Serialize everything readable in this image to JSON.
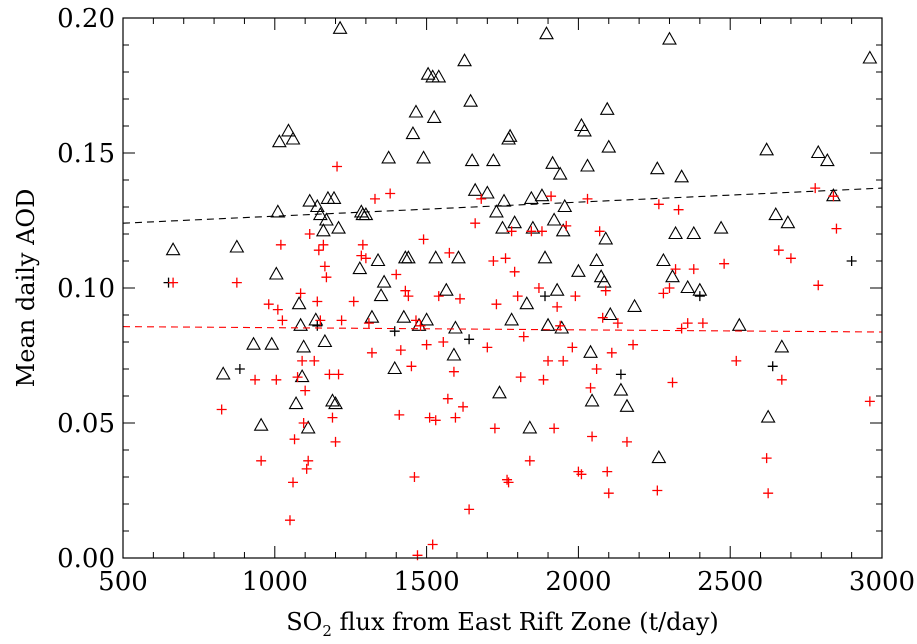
{
  "chart_data": {
    "type": "scatter",
    "xlabel_pre": "SO",
    "xlabel_sub": "2",
    "xlabel_post": " flux from East Rift Zone (t/day)",
    "ylabel": "Mean daily AOD",
    "xlim": [
      500,
      3000
    ],
    "ylim": [
      0.0,
      0.2
    ],
    "x_ticks": [
      "500",
      "1000",
      "1500",
      "2000",
      "2500",
      "3000"
    ],
    "y_ticks": [
      "0.00",
      "0.05",
      "0.10",
      "0.15",
      "0.20"
    ],
    "grid": false,
    "colors": {
      "triangles": "#000000",
      "black_plus": "#000000",
      "red_plus": "#ff0000",
      "black_trend": "#000000",
      "red_trend": "#ff0000"
    },
    "series": [
      {
        "marker": "triangle",
        "color": "#000000",
        "points": [
          [
            665,
            0.114
          ],
          [
            830,
            0.068
          ],
          [
            875,
            0.115
          ],
          [
            930,
            0.079
          ],
          [
            955,
            0.049
          ],
          [
            990,
            0.079
          ],
          [
            1005,
            0.105
          ],
          [
            1010,
            0.128
          ],
          [
            1015,
            0.154
          ],
          [
            1045,
            0.158
          ],
          [
            1060,
            0.155
          ],
          [
            1070,
            0.057
          ],
          [
            1080,
            0.094
          ],
          [
            1085,
            0.086
          ],
          [
            1090,
            0.067
          ],
          [
            1095,
            0.078
          ],
          [
            1110,
            0.048
          ],
          [
            1115,
            0.132
          ],
          [
            1135,
            0.088
          ],
          [
            1140,
            0.13
          ],
          [
            1150,
            0.127
          ],
          [
            1160,
            0.121
          ],
          [
            1165,
            0.08
          ],
          [
            1170,
            0.125
          ],
          [
            1175,
            0.133
          ],
          [
            1190,
            0.058
          ],
          [
            1195,
            0.133
          ],
          [
            1200,
            0.057
          ],
          [
            1210,
            0.122
          ],
          [
            1215,
            0.196
          ],
          [
            1280,
            0.107
          ],
          [
            1285,
            0.128
          ],
          [
            1290,
            0.127
          ],
          [
            1300,
            0.127
          ],
          [
            1320,
            0.089
          ],
          [
            1340,
            0.11
          ],
          [
            1350,
            0.097
          ],
          [
            1360,
            0.102
          ],
          [
            1375,
            0.148
          ],
          [
            1395,
            0.07
          ],
          [
            1425,
            0.089
          ],
          [
            1430,
            0.111
          ],
          [
            1440,
            0.111
          ],
          [
            1455,
            0.157
          ],
          [
            1465,
            0.165
          ],
          [
            1475,
            0.086
          ],
          [
            1490,
            0.148
          ],
          [
            1500,
            0.088
          ],
          [
            1505,
            0.179
          ],
          [
            1520,
            0.178
          ],
          [
            1525,
            0.163
          ],
          [
            1530,
            0.111
          ],
          [
            1540,
            0.178
          ],
          [
            1565,
            0.099
          ],
          [
            1590,
            0.075
          ],
          [
            1595,
            0.085
          ],
          [
            1605,
            0.111
          ],
          [
            1625,
            0.184
          ],
          [
            1645,
            0.169
          ],
          [
            1650,
            0.147
          ],
          [
            1660,
            0.136
          ],
          [
            1700,
            0.135
          ],
          [
            1720,
            0.147
          ],
          [
            1730,
            0.128
          ],
          [
            1740,
            0.061
          ],
          [
            1750,
            0.122
          ],
          [
            1755,
            0.132
          ],
          [
            1770,
            0.155
          ],
          [
            1775,
            0.156
          ],
          [
            1780,
            0.088
          ],
          [
            1790,
            0.124
          ],
          [
            1830,
            0.094
          ],
          [
            1840,
            0.048
          ],
          [
            1845,
            0.133
          ],
          [
            1850,
            0.122
          ],
          [
            1880,
            0.134
          ],
          [
            1890,
            0.111
          ],
          [
            1895,
            0.194
          ],
          [
            1900,
            0.086
          ],
          [
            1915,
            0.146
          ],
          [
            1920,
            0.125
          ],
          [
            1930,
            0.099
          ],
          [
            1940,
            0.142
          ],
          [
            1945,
            0.085
          ],
          [
            1950,
            0.121
          ],
          [
            1955,
            0.13
          ],
          [
            2000,
            0.106
          ],
          [
            2010,
            0.16
          ],
          [
            2020,
            0.158
          ],
          [
            2030,
            0.145
          ],
          [
            2040,
            0.076
          ],
          [
            2045,
            0.058
          ],
          [
            2060,
            0.11
          ],
          [
            2075,
            0.104
          ],
          [
            2085,
            0.102
          ],
          [
            2090,
            0.118
          ],
          [
            2095,
            0.166
          ],
          [
            2100,
            0.152
          ],
          [
            2105,
            0.09
          ],
          [
            2140,
            0.062
          ],
          [
            2160,
            0.056
          ],
          [
            2185,
            0.093
          ],
          [
            2260,
            0.144
          ],
          [
            2265,
            0.037
          ],
          [
            2280,
            0.11
          ],
          [
            2300,
            0.192
          ],
          [
            2310,
            0.104
          ],
          [
            2320,
            0.12
          ],
          [
            2340,
            0.141
          ],
          [
            2360,
            0.1
          ],
          [
            2380,
            0.12
          ],
          [
            2400,
            0.099
          ],
          [
            2470,
            0.122
          ],
          [
            2530,
            0.086
          ],
          [
            2620,
            0.151
          ],
          [
            2625,
            0.052
          ],
          [
            2650,
            0.127
          ],
          [
            2670,
            0.078
          ],
          [
            2690,
            0.124
          ],
          [
            2790,
            0.15
          ],
          [
            2820,
            0.147
          ],
          [
            2840,
            0.134
          ],
          [
            2960,
            0.185
          ]
        ]
      },
      {
        "marker": "plus",
        "color": "#000000",
        "points": [
          [
            650,
            0.102
          ],
          [
            885,
            0.07
          ],
          [
            1140,
            0.086
          ],
          [
            1395,
            0.084
          ],
          [
            1640,
            0.081
          ],
          [
            1890,
            0.097
          ],
          [
            2140,
            0.068
          ],
          [
            2400,
            0.097
          ],
          [
            2640,
            0.071
          ],
          [
            2900,
            0.11
          ]
        ]
      },
      {
        "marker": "plus",
        "color": "#ff0000",
        "points": [
          [
            665,
            0.102
          ],
          [
            825,
            0.055
          ],
          [
            875,
            0.102
          ],
          [
            935,
            0.066
          ],
          [
            955,
            0.036
          ],
          [
            980,
            0.094
          ],
          [
            1005,
            0.066
          ],
          [
            1010,
            0.092
          ],
          [
            1020,
            0.116
          ],
          [
            1025,
            0.088
          ],
          [
            1050,
            0.014
          ],
          [
            1060,
            0.028
          ],
          [
            1065,
            0.044
          ],
          [
            1075,
            0.067
          ],
          [
            1085,
            0.098
          ],
          [
            1090,
            0.073
          ],
          [
            1095,
            0.05
          ],
          [
            1100,
            0.062
          ],
          [
            1105,
            0.033
          ],
          [
            1110,
            0.036
          ],
          [
            1115,
            0.12
          ],
          [
            1130,
            0.073
          ],
          [
            1140,
            0.095
          ],
          [
            1145,
            0.114
          ],
          [
            1150,
            0.088
          ],
          [
            1160,
            0.116
          ],
          [
            1165,
            0.108
          ],
          [
            1170,
            0.104
          ],
          [
            1180,
            0.068
          ],
          [
            1190,
            0.052
          ],
          [
            1200,
            0.043
          ],
          [
            1205,
            0.145
          ],
          [
            1210,
            0.068
          ],
          [
            1220,
            0.088
          ],
          [
            1260,
            0.095
          ],
          [
            1285,
            0.112
          ],
          [
            1290,
            0.116
          ],
          [
            1300,
            0.111
          ],
          [
            1310,
            0.087
          ],
          [
            1320,
            0.076
          ],
          [
            1330,
            0.133
          ],
          [
            1380,
            0.135
          ],
          [
            1400,
            0.105
          ],
          [
            1410,
            0.053
          ],
          [
            1415,
            0.077
          ],
          [
            1430,
            0.099
          ],
          [
            1440,
            0.097
          ],
          [
            1450,
            0.071
          ],
          [
            1460,
            0.03
          ],
          [
            1465,
            0.088
          ],
          [
            1470,
            0.001
          ],
          [
            1480,
            0.086
          ],
          [
            1490,
            0.118
          ],
          [
            1500,
            0.079
          ],
          [
            1510,
            0.052
          ],
          [
            1520,
            0.005
          ],
          [
            1530,
            0.051
          ],
          [
            1540,
            0.097
          ],
          [
            1555,
            0.08
          ],
          [
            1570,
            0.059
          ],
          [
            1575,
            0.113
          ],
          [
            1590,
            0.069
          ],
          [
            1595,
            0.052
          ],
          [
            1610,
            0.096
          ],
          [
            1620,
            0.056
          ],
          [
            1640,
            0.018
          ],
          [
            1660,
            0.124
          ],
          [
            1680,
            0.133
          ],
          [
            1700,
            0.078
          ],
          [
            1720,
            0.11
          ],
          [
            1725,
            0.048
          ],
          [
            1730,
            0.094
          ],
          [
            1760,
            0.111
          ],
          [
            1765,
            0.029
          ],
          [
            1770,
            0.028
          ],
          [
            1780,
            0.121
          ],
          [
            1790,
            0.106
          ],
          [
            1800,
            0.097
          ],
          [
            1810,
            0.067
          ],
          [
            1820,
            0.082
          ],
          [
            1840,
            0.036
          ],
          [
            1845,
            0.121
          ],
          [
            1870,
            0.1
          ],
          [
            1880,
            0.121
          ],
          [
            1885,
            0.066
          ],
          [
            1900,
            0.073
          ],
          [
            1910,
            0.134
          ],
          [
            1920,
            0.048
          ],
          [
            1930,
            0.093
          ],
          [
            1940,
            0.086
          ],
          [
            1950,
            0.073
          ],
          [
            1960,
            0.123
          ],
          [
            1980,
            0.078
          ],
          [
            1990,
            0.097
          ],
          [
            2000,
            0.032
          ],
          [
            2010,
            0.031
          ],
          [
            2030,
            0.133
          ],
          [
            2040,
            0.063
          ],
          [
            2045,
            0.045
          ],
          [
            2060,
            0.07
          ],
          [
            2070,
            0.121
          ],
          [
            2080,
            0.089
          ],
          [
            2090,
            0.099
          ],
          [
            2095,
            0.032
          ],
          [
            2100,
            0.024
          ],
          [
            2110,
            0.076
          ],
          [
            2130,
            0.087
          ],
          [
            2160,
            0.043
          ],
          [
            2180,
            0.079
          ],
          [
            2260,
            0.025
          ],
          [
            2265,
            0.131
          ],
          [
            2280,
            0.098
          ],
          [
            2300,
            0.1
          ],
          [
            2310,
            0.065
          ],
          [
            2320,
            0.107
          ],
          [
            2330,
            0.129
          ],
          [
            2340,
            0.085
          ],
          [
            2360,
            0.087
          ],
          [
            2380,
            0.107
          ],
          [
            2410,
            0.087
          ],
          [
            2480,
            0.109
          ],
          [
            2520,
            0.073
          ],
          [
            2620,
            0.037
          ],
          [
            2625,
            0.024
          ],
          [
            2660,
            0.114
          ],
          [
            2670,
            0.066
          ],
          [
            2700,
            0.111
          ],
          [
            2780,
            0.137
          ],
          [
            2790,
            0.101
          ],
          [
            2840,
            0.134
          ],
          [
            2850,
            0.122
          ],
          [
            2960,
            0.058
          ]
        ]
      }
    ],
    "trendlines": [
      {
        "color": "#000000",
        "style": "dashed",
        "x": [
          500,
          3000
        ],
        "y": [
          0.124,
          0.137
        ]
      },
      {
        "color": "#ff0000",
        "style": "dashed",
        "x": [
          500,
          3000
        ],
        "y": [
          0.0857,
          0.0837
        ]
      }
    ]
  }
}
